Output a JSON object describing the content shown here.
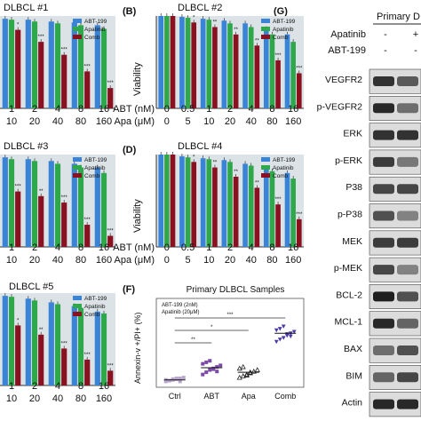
{
  "colors": {
    "abt": "#3a84d8",
    "apa": "#2ea84a",
    "comb": "#8b1020",
    "plot_bg": "#dce3e7",
    "band": "#dcdcdc"
  },
  "legend": [
    "ABT-199",
    "Apatinib",
    "Comb"
  ],
  "sig": {
    "p3": "***",
    "p2": "**",
    "p1": "*"
  },
  "ylabel": "Viability",
  "abt_label": "ABT (nM)",
  "apa_label": "Apa (μM)",
  "abt_doses": [
    "0",
    "0.5",
    "1",
    "2",
    "4",
    "8",
    "16"
  ],
  "apa_doses": [
    "0",
    "5",
    "10",
    "20",
    "40",
    "80",
    "160"
  ],
  "abt_doses_cut": [
    "1",
    "2",
    "4",
    "8",
    "16"
  ],
  "apa_doses_cut": [
    "10",
    "20",
    "40",
    "80",
    "160"
  ],
  "panelB": "(B)",
  "panelD": "(D)",
  "panelF": "(F)",
  "panelG": "(G)",
  "chart_data": [
    {
      "type": "bar",
      "title": "DLBCL #1",
      "categories": [
        "1/10",
        "2/20",
        "4/40",
        "8/80",
        "16/160"
      ],
      "series": [
        {
          "name": "ABT-199",
          "values": [
            0.97,
            0.96,
            0.94,
            0.93,
            0.9
          ]
        },
        {
          "name": "Apatinib",
          "values": [
            0.96,
            0.94,
            0.92,
            0.9,
            0.86
          ]
        },
        {
          "name": "Comb",
          "values": [
            0.85,
            0.72,
            0.58,
            0.4,
            0.22
          ]
        }
      ],
      "sig": [
        "*",
        "***",
        "***",
        "***",
        "***"
      ]
    },
    {
      "type": "bar",
      "title": "DLBCL #2",
      "ylabel": "Viability",
      "categories": [
        "0/0",
        "0.5/5",
        "1/10",
        "2/20",
        "4/40",
        "8/80",
        "16/160"
      ],
      "series": [
        {
          "name": "ABT-199",
          "values": [
            1.0,
            0.99,
            0.97,
            0.95,
            0.92,
            0.86,
            0.8
          ]
        },
        {
          "name": "Apatinib",
          "values": [
            1.0,
            0.98,
            0.96,
            0.92,
            0.88,
            0.8,
            0.72
          ]
        },
        {
          "name": "Comb",
          "values": [
            1.0,
            0.93,
            0.88,
            0.8,
            0.68,
            0.52,
            0.38
          ]
        }
      ],
      "sig": [
        "",
        "*",
        "**",
        "**",
        "**",
        "***",
        "***"
      ]
    },
    {
      "type": "bar",
      "title": "DLBCL #3",
      "categories": [
        "1/10",
        "2/20",
        "4/40",
        "8/80",
        "16/160"
      ],
      "series": [
        {
          "name": "ABT-199",
          "values": [
            0.97,
            0.95,
            0.93,
            0.9,
            0.86
          ]
        },
        {
          "name": "Apatinib",
          "values": [
            0.95,
            0.93,
            0.9,
            0.86,
            0.8
          ]
        },
        {
          "name": "Comb",
          "values": [
            0.6,
            0.55,
            0.48,
            0.24,
            0.12
          ]
        }
      ],
      "sig": [
        "***",
        "**",
        "***",
        "***",
        "***"
      ]
    },
    {
      "type": "bar",
      "title": "DLBCL #4",
      "ylabel": "Viability",
      "categories": [
        "0/0",
        "0.5/5",
        "1/10",
        "2/20",
        "4/40",
        "8/80",
        "16/160"
      ],
      "series": [
        {
          "name": "ABT-199",
          "values": [
            1.0,
            0.98,
            0.96,
            0.94,
            0.9,
            0.85,
            0.8
          ]
        },
        {
          "name": "Apatinib",
          "values": [
            1.0,
            0.97,
            0.95,
            0.92,
            0.88,
            0.82,
            0.74
          ]
        },
        {
          "name": "Comb",
          "values": [
            1.0,
            0.92,
            0.86,
            0.76,
            0.64,
            0.46,
            0.3
          ]
        }
      ],
      "sig": [
        "",
        "*",
        "**",
        "**",
        "**",
        "***",
        "***"
      ]
    },
    {
      "type": "bar",
      "title": "DLBCL #5",
      "categories": [
        "1/10",
        "2/20",
        "4/40",
        "8/80",
        "16/160"
      ],
      "series": [
        {
          "name": "ABT-199",
          "values": [
            0.97,
            0.94,
            0.9,
            0.86,
            0.8
          ]
        },
        {
          "name": "Apatinib",
          "values": [
            0.96,
            0.92,
            0.88,
            0.84,
            0.78
          ]
        },
        {
          "name": "Comb",
          "values": [
            0.65,
            0.55,
            0.4,
            0.28,
            0.16
          ]
        }
      ],
      "sig": [
        "*",
        "**",
        "***",
        "***",
        "***"
      ]
    },
    {
      "type": "scatter",
      "title": "Primary DLBCL Samples",
      "ylabel": "Annexin-v +/PI+ (%)",
      "categories": [
        "Ctrl",
        "ABT",
        "Apa",
        "Comb"
      ],
      "ylim": [
        0,
        100
      ],
      "legend_text": [
        "ABT-199 (2nM)",
        "Apatinib (20μM)"
      ],
      "points": [
        [
          3,
          4,
          5,
          6,
          7,
          8,
          5,
          4,
          6,
          7,
          3
        ],
        [
          12,
          15,
          18,
          20,
          22,
          24,
          26,
          28,
          30,
          19,
          16
        ],
        [
          8,
          10,
          12,
          14,
          16,
          18,
          20,
          22,
          11,
          15
        ],
        [
          55,
          58,
          60,
          63,
          66,
          68,
          70,
          72,
          75,
          65,
          62
        ]
      ],
      "means": [
        5,
        21,
        15,
        66
      ],
      "brackets": [
        {
          "from": 0,
          "to": 3,
          "label": "***"
        },
        {
          "from": 0,
          "to": 2,
          "label": "*"
        },
        {
          "from": 0,
          "to": 1,
          "label": "**"
        }
      ]
    }
  ],
  "blots": {
    "header": "Primary D",
    "treatments": [
      {
        "name": "Apatinib",
        "values": [
          "-",
          "+"
        ]
      },
      {
        "name": "ABT-199",
        "values": [
          "-",
          "-"
        ]
      }
    ],
    "rows": [
      {
        "label": "VEGFR2",
        "i": [
          0.85,
          0.65
        ]
      },
      {
        "label": "p-VEGFR2",
        "i": [
          0.9,
          0.55
        ]
      },
      {
        "label": "ERK",
        "i": [
          0.85,
          0.85
        ]
      },
      {
        "label": "p-ERK",
        "i": [
          0.8,
          0.5
        ]
      },
      {
        "label": "P38",
        "i": [
          0.75,
          0.75
        ]
      },
      {
        "label": "p-P38",
        "i": [
          0.7,
          0.45
        ]
      },
      {
        "label": "MEK",
        "i": [
          0.8,
          0.8
        ]
      },
      {
        "label": "p-MEK",
        "i": [
          0.75,
          0.45
        ]
      },
      {
        "label": "BCL-2",
        "i": [
          0.95,
          0.7
        ]
      },
      {
        "label": "MCL-1",
        "i": [
          0.9,
          0.6
        ]
      },
      {
        "label": "BAX",
        "i": [
          0.55,
          0.7
        ]
      },
      {
        "label": "BIM",
        "i": [
          0.6,
          0.75
        ]
      },
      {
        "label": "Actin",
        "i": [
          0.9,
          0.9
        ]
      }
    ]
  }
}
